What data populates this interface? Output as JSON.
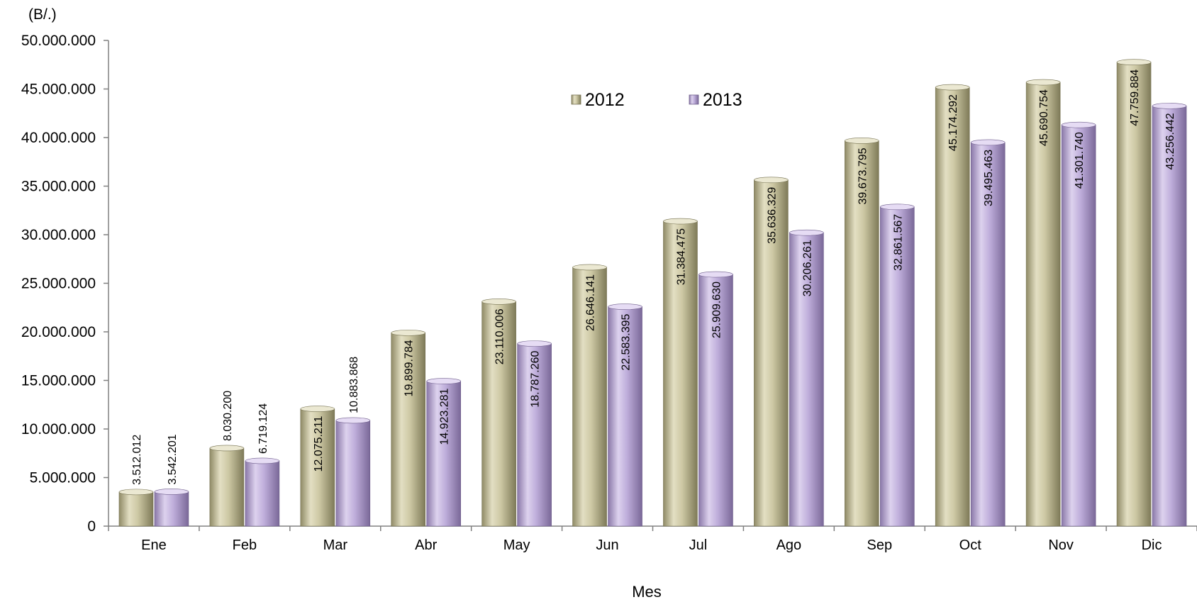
{
  "chart_data": {
    "type": "bar",
    "title": "",
    "unit_label": "(B/.)",
    "xlabel": "Mes",
    "ylabel": "",
    "categories": [
      "Ene",
      "Feb",
      "Mar",
      "Abr",
      "May",
      "Jun",
      "Jul",
      "Ago",
      "Sep",
      "Oct",
      "Nov",
      "Dic"
    ],
    "series": [
      {
        "name": "2012",
        "color": "#c9c4a0",
        "values": [
          3512012,
          8030200,
          12075211,
          19899784,
          23110006,
          26646141,
          31384475,
          35636329,
          39673795,
          45174292,
          45690754,
          47759884
        ],
        "labels": [
          "3.512.012",
          "8.030.200",
          "12.075.211",
          "19.899.784",
          "23.110.006",
          "26.646.141",
          "31.384.475",
          "35.636.329",
          "39.673.795",
          "45.174.292",
          "45.690.754",
          "47.759.884"
        ]
      },
      {
        "name": "2013",
        "color": "#b7a6d4",
        "values": [
          3542201,
          6719124,
          10883868,
          14923281,
          18787260,
          22583395,
          25909630,
          30206261,
          32861567,
          39495463,
          41301740,
          43256442
        ],
        "labels": [
          "3.542.201",
          "6.719.124",
          "10.883.868",
          "14.923.281",
          "18.787.260",
          "22.583.395",
          "25.909.630",
          "30.206.261",
          "32.861.567",
          "39.495.463",
          "41.301.740",
          "43.256.442"
        ]
      }
    ],
    "ylim": [
      0,
      50000000
    ],
    "yticks": [
      0,
      5000000,
      10000000,
      15000000,
      20000000,
      25000000,
      30000000,
      35000000,
      40000000,
      45000000,
      50000000
    ],
    "ytick_labels": [
      "0",
      "5.000.000",
      "10.000.000",
      "15.000.000",
      "20.000.000",
      "25.000.000",
      "30.000.000",
      "35.000.000",
      "40.000.000",
      "45.000.000",
      "50.000.000"
    ],
    "grid": false,
    "legend_position": "top-center"
  }
}
